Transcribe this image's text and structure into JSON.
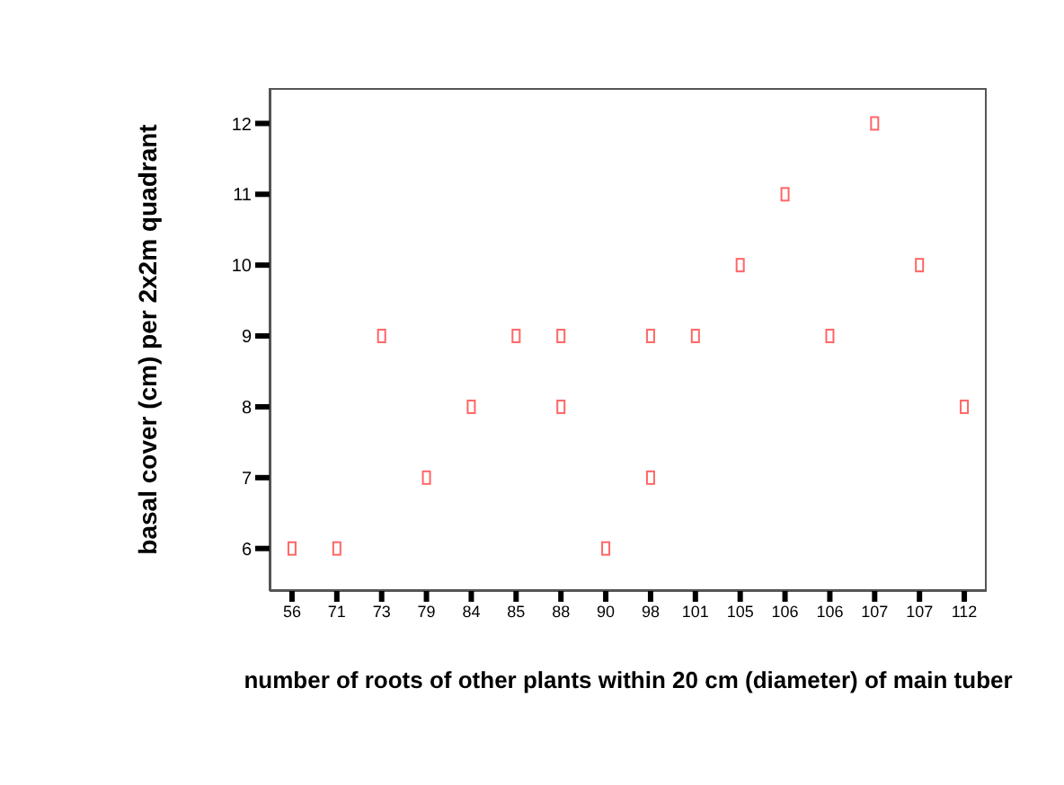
{
  "chart_data": {
    "type": "scatter",
    "xlabel": "number of roots of other plants within 20 cm (diameter) of main tuber",
    "ylabel": "basal cover (cm) per 2x2m quadrant",
    "categories": [
      "56",
      "71",
      "73",
      "79",
      "84",
      "85",
      "88",
      "90",
      "98",
      "101",
      "105",
      "106",
      "106",
      "107",
      "107",
      "112"
    ],
    "series": [
      {
        "color": "#ff6666",
        "values": [
          6,
          6,
          9,
          7,
          8,
          9,
          9,
          6,
          9,
          9,
          10,
          11,
          9,
          12,
          10,
          8
        ]
      },
      {
        "color": "#ff6666",
        "values": [
          null,
          null,
          null,
          null,
          null,
          null,
          8,
          null,
          7,
          null,
          null,
          null,
          null,
          null,
          null,
          null
        ]
      }
    ],
    "ylim": [
      5.4,
      12.5
    ],
    "yticks": [
      6,
      7,
      8,
      9,
      10,
      11,
      12
    ],
    "grid": false,
    "legend": false,
    "marker": "square"
  }
}
